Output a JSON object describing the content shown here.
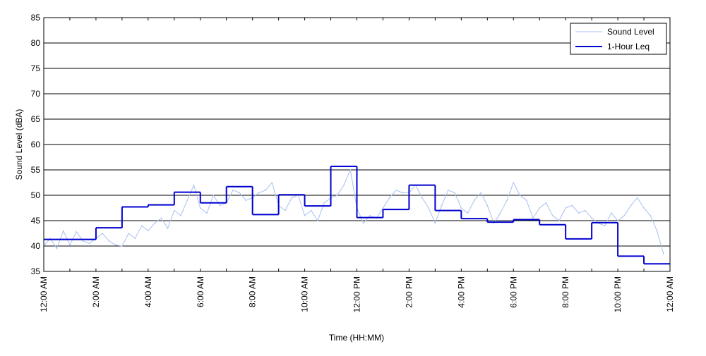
{
  "chart_data": {
    "type": "line",
    "title": "",
    "xlabel": "Time (HH:MM)",
    "ylabel": "Sound Level (dBA)",
    "xlim": [
      0,
      24
    ],
    "ylim": [
      35,
      85
    ],
    "yticks": [
      35,
      40,
      45,
      50,
      55,
      60,
      65,
      70,
      75,
      80,
      85
    ],
    "xtick_labels": [
      "12:00 AM",
      "2:00 AM",
      "4:00 AM",
      "6:00 AM",
      "8:00 AM",
      "10:00 AM",
      "12:00 PM",
      "2:00 PM",
      "4:00 PM",
      "6:00 PM",
      "8:00 PM",
      "10:00 PM",
      "12:00 AM"
    ],
    "grid": "horizontal",
    "legend": {
      "position": "top-right",
      "entries": [
        "Sound Level",
        "1-Hour Leq"
      ]
    },
    "series": [
      {
        "name": "1-Hour Leq",
        "color": "#0000d0",
        "step": true,
        "hour_start": [
          0,
          1,
          2,
          3,
          4,
          5,
          6,
          7,
          8,
          9,
          10,
          11,
          12,
          13,
          14,
          15,
          16,
          17,
          18,
          19,
          20,
          21,
          22,
          23
        ],
        "values": [
          41.3,
          41.3,
          43.6,
          47.7,
          48.1,
          50.6,
          48.5,
          51.7,
          46.2,
          50.1,
          47.9,
          55.7,
          45.6,
          47.2,
          52.0,
          47.0,
          45.4,
          44.7,
          45.2,
          44.2,
          41.4,
          44.6,
          38.0,
          36.5
        ]
      },
      {
        "name": "Sound Level",
        "color": "#a8c0f0",
        "sample_interval_hours": 0.25,
        "values": [
          40.0,
          41.5,
          39.5,
          43.0,
          40.2,
          42.8,
          41.0,
          40.5,
          41.5,
          42.5,
          41.0,
          40.2,
          40.0,
          42.5,
          41.5,
          44.0,
          43.0,
          44.5,
          45.5,
          43.5,
          47.0,
          46.0,
          49.0,
          52.0,
          47.5,
          46.5,
          50.0,
          48.0,
          48.5,
          51.0,
          50.5,
          49.0,
          49.5,
          50.5,
          51.0,
          52.5,
          48.0,
          47.0,
          49.5,
          50.0,
          46.0,
          47.0,
          45.0,
          48.5,
          49.5,
          50.0,
          52.0,
          55.0,
          47.5,
          44.5,
          46.0,
          45.5,
          47.5,
          49.5,
          51.0,
          50.5,
          50.5,
          52.0,
          49.5,
          47.5,
          44.5,
          48.0,
          51.0,
          50.5,
          47.5,
          46.5,
          49.0,
          50.5,
          48.0,
          44.5,
          46.5,
          49.0,
          52.5,
          50.0,
          49.0,
          45.5,
          47.5,
          48.5,
          46.0,
          45.0,
          47.5,
          48.0,
          46.5,
          47.0,
          45.5,
          44.5,
          44.0,
          46.5,
          45.0,
          46.0,
          48.0,
          49.5,
          47.5,
          46.0,
          43.0,
          38.5
        ]
      }
    ]
  }
}
